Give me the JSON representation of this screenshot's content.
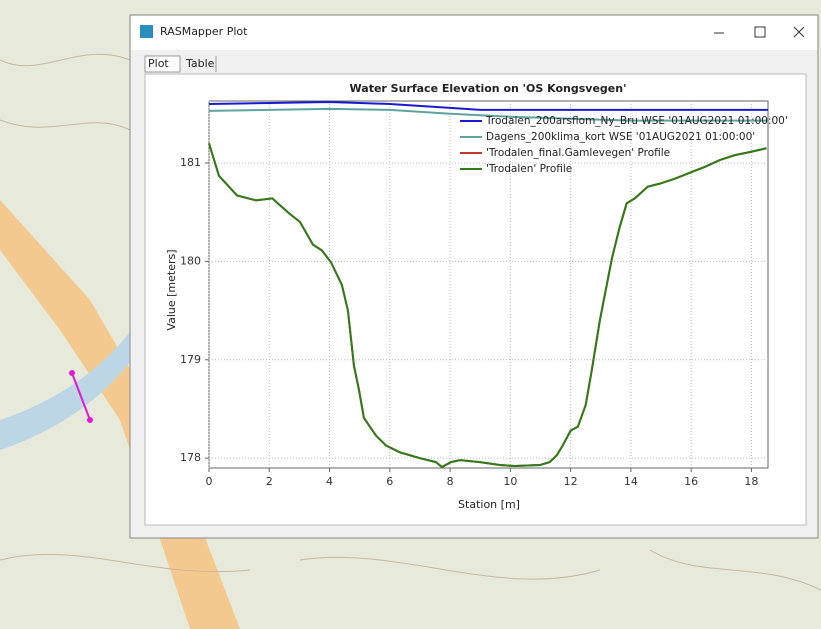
{
  "window": {
    "title": "RASMapper Plot",
    "tabs": [
      "Plot",
      "Table"
    ]
  },
  "chart_data": {
    "type": "line",
    "title": "Water Surface Elevation on 'OS Kongsvegen'",
    "x_label": "Station [m]",
    "y_label": "Value [meters]",
    "xlim": [
      0,
      18.55
    ],
    "ylim": [
      177.9,
      181.63
    ],
    "xticks": [
      0,
      2,
      4,
      6,
      8,
      10,
      12,
      14,
      16,
      18
    ],
    "yticks": [
      178,
      179,
      180,
      181
    ],
    "grid": true,
    "legend": "upper right",
    "series": [
      {
        "name": "Trodalen_200arsflom_Ny_Bru WSE '01AUG2021 01:00:00'",
        "color": "#1a1ad0",
        "x": [
          0,
          4,
          6,
          8,
          9,
          18.55
        ],
        "values": [
          181.6,
          181.62,
          181.6,
          181.56,
          181.54,
          181.54
        ]
      },
      {
        "name": "Dagens_200klima_kort WSE '01AUG2021 01:00:00'",
        "color": "#5fa3a0",
        "x": [
          0,
          4,
          6,
          8,
          10,
          12,
          14,
          18.55
        ],
        "values": [
          181.53,
          181.55,
          181.54,
          181.5,
          181.47,
          181.45,
          181.43,
          181.43
        ]
      },
      {
        "name": "'Trodalen_final.Gamlevegen' Profile",
        "color": "#c0392b",
        "x": [
          0,
          0.33,
          0.93,
          1.56,
          2.1,
          2.65,
          3.02,
          3.45,
          3.75,
          4.05,
          4.41,
          4.61,
          4.81,
          4.98,
          5.14,
          5.54,
          5.87,
          6.33,
          7,
          7.53,
          7.73,
          8.03,
          8.33,
          8.99,
          9.65,
          10.15,
          10.98,
          11.31,
          11.54,
          11.74,
          12.0,
          12.24,
          12.5,
          12.7,
          12.97,
          13.37,
          13.63,
          13.86,
          14.13,
          14.56,
          14.96,
          15.46,
          15.95,
          16.45,
          16.95,
          17.45,
          17.94,
          18.5
        ],
        "values": [
          181.2,
          180.87,
          180.67,
          180.62,
          180.64,
          180.49,
          180.4,
          180.17,
          180.11,
          179.99,
          179.76,
          179.5,
          178.94,
          178.69,
          178.41,
          178.23,
          178.13,
          178.06,
          178.0,
          177.96,
          177.91,
          177.96,
          177.98,
          177.96,
          177.93,
          177.92,
          177.93,
          177.96,
          178.03,
          178.13,
          178.28,
          178.32,
          178.54,
          178.89,
          179.4,
          180.03,
          180.35,
          180.59,
          180.64,
          180.76,
          180.79,
          180.84,
          180.9,
          180.96,
          181.03,
          181.08,
          181.11,
          181.15
        ]
      },
      {
        "name": "'Trodalen' Profile",
        "color": "#2e7d1a",
        "x": [
          0,
          0.33,
          0.93,
          1.56,
          2.1,
          2.65,
          3.02,
          3.45,
          3.75,
          4.05,
          4.41,
          4.61,
          4.81,
          4.98,
          5.14,
          5.54,
          5.87,
          6.33,
          7,
          7.53,
          7.73,
          8.03,
          8.33,
          8.99,
          9.65,
          10.15,
          10.98,
          11.31,
          11.54,
          11.74,
          12.0,
          12.24,
          12.5,
          12.7,
          12.97,
          13.37,
          13.63,
          13.86,
          14.13,
          14.56,
          14.96,
          15.46,
          15.95,
          16.45,
          16.95,
          17.45,
          17.94,
          18.5
        ],
        "values": [
          181.2,
          180.87,
          180.67,
          180.62,
          180.64,
          180.49,
          180.4,
          180.17,
          180.11,
          179.99,
          179.76,
          179.5,
          178.94,
          178.69,
          178.41,
          178.23,
          178.13,
          178.06,
          178.0,
          177.96,
          177.91,
          177.96,
          177.98,
          177.96,
          177.93,
          177.92,
          177.93,
          177.96,
          178.03,
          178.13,
          178.28,
          178.32,
          178.54,
          178.89,
          179.4,
          180.03,
          180.35,
          180.59,
          180.64,
          180.76,
          180.79,
          180.84,
          180.9,
          180.96,
          181.03,
          181.08,
          181.11,
          181.15
        ]
      }
    ]
  }
}
